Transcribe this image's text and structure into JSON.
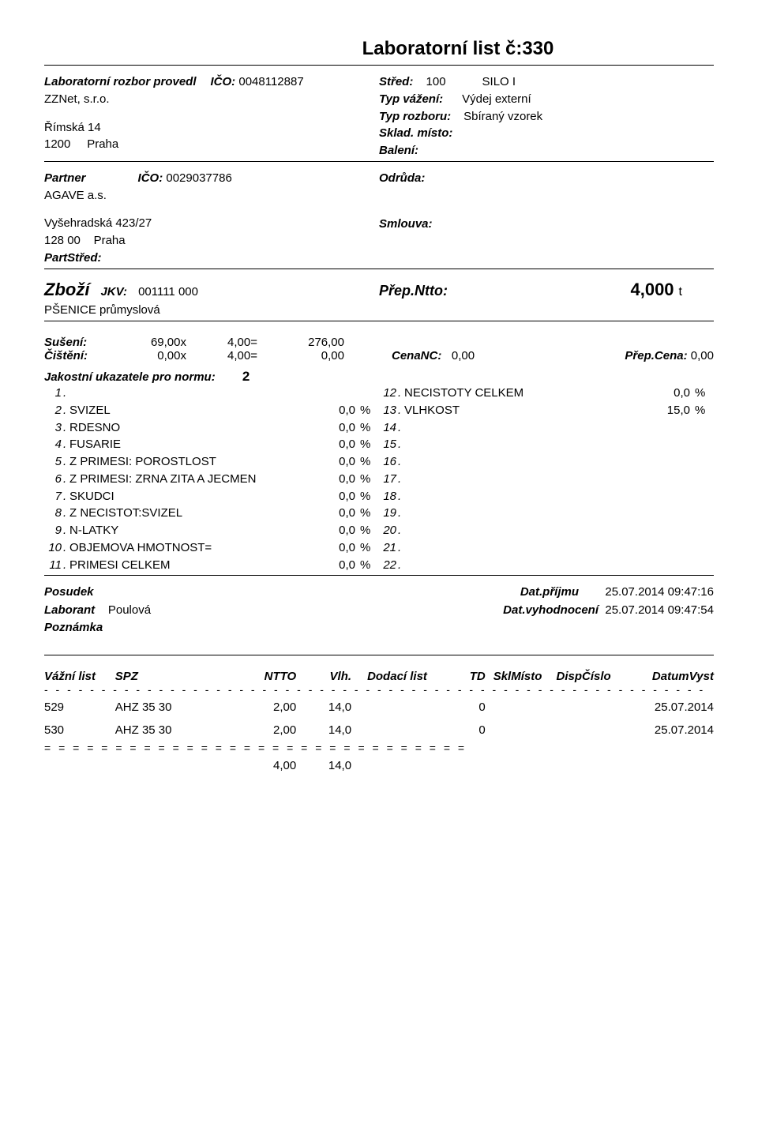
{
  "title": "Laboratorní list č:330",
  "lab": {
    "provedl_label": "Laboratorní rozbor provedl",
    "ico_label": "IČO:",
    "ico": "0048112887",
    "company": "ZZNet, s.r.o.",
    "street": "Římská 14",
    "zip": "1200",
    "city": "Praha"
  },
  "right": {
    "stred_label": "Střed:",
    "stred": "100",
    "silo": "SILO I",
    "typvaz_label": "Typ vážení:",
    "typvaz": "Výdej externí",
    "typroz_label": "Typ rozboru:",
    "typroz": "Sbíraný vzorek",
    "sklad_label": "Sklad. místo:",
    "baleni_label": "Balení:"
  },
  "partner": {
    "label": "Partner",
    "ico_label": "IČO:",
    "ico": "0029037786",
    "name": "AGAVE a.s.",
    "street": "Vyšehradská 423/27",
    "zip": "128 00",
    "city": "Praha",
    "partstred_label": "PartStřed:",
    "odruda_label": "Odrůda:",
    "smlouva_label": "Smlouva:"
  },
  "zbozi": {
    "label": "Zboží",
    "jkv_label": "JKV:",
    "jkv": "001111 000",
    "name": "PŠENICE průmyslová",
    "prep_label": "Přep.Ntto:",
    "prep_value": "4,000",
    "prep_unit": "t"
  },
  "calc": {
    "suseni_label": "Sušení:",
    "suseni_x": "69,00x",
    "suseni_eq": "4,00=",
    "suseni_res": "276,00",
    "cisteni_label": "Čištění:",
    "cisteni_x": "0,00x",
    "cisteni_eq": "4,00=",
    "cisteni_res": "0,00",
    "cenanc_label": "CenaNC:",
    "cenanc": "0,00",
    "prepcena_label": "Přep.Cena:",
    "prepcena": "0,00"
  },
  "norm": {
    "label": "Jakostní ukazatele pro normu:",
    "value": "2"
  },
  "quality_left": [
    {
      "n": "1",
      "name": "",
      "v": "",
      "u": ""
    },
    {
      "n": "2",
      "name": "SVIZEL",
      "v": "0,0",
      "u": "%"
    },
    {
      "n": "3",
      "name": "RDESNO",
      "v": "0,0",
      "u": "%"
    },
    {
      "n": "4",
      "name": "FUSARIE",
      "v": "0,0",
      "u": "%"
    },
    {
      "n": "5",
      "name": "Z PRIMESI: POROSTLOST",
      "v": "0,0",
      "u": "%"
    },
    {
      "n": "6",
      "name": "Z PRIMESI: ZRNA ZITA A JECMEN",
      "v": "0,0",
      "u": "%"
    },
    {
      "n": "7",
      "name": "SKUDCI",
      "v": "0,0",
      "u": "%"
    },
    {
      "n": "8",
      "name": "Z NECISTOT:SVIZEL",
      "v": "0,0",
      "u": "%"
    },
    {
      "n": "9",
      "name": "N-LATKY",
      "v": "0,0",
      "u": "%"
    },
    {
      "n": "10",
      "name": "OBJEMOVA HMOTNOST=",
      "v": "0,0",
      "u": "%"
    },
    {
      "n": "11",
      "name": "PRIMESI CELKEM",
      "v": "0,0",
      "u": "%"
    }
  ],
  "quality_right": [
    {
      "n": "12",
      "name": "NECISTOTY CELKEM",
      "v": "0,0",
      "u": "%"
    },
    {
      "n": "13",
      "name": "VLHKOST",
      "v": "15,0",
      "u": "%"
    },
    {
      "n": "14",
      "name": "",
      "v": "",
      "u": ""
    },
    {
      "n": "15",
      "name": "",
      "v": "",
      "u": ""
    },
    {
      "n": "16",
      "name": "",
      "v": "",
      "u": ""
    },
    {
      "n": "17",
      "name": "",
      "v": "",
      "u": ""
    },
    {
      "n": "18",
      "name": "",
      "v": "",
      "u": ""
    },
    {
      "n": "19",
      "name": "",
      "v": "",
      "u": ""
    },
    {
      "n": "20",
      "name": "",
      "v": "",
      "u": ""
    },
    {
      "n": "21",
      "name": "",
      "v": "",
      "u": ""
    },
    {
      "n": "22",
      "name": "",
      "v": "",
      "u": ""
    }
  ],
  "footer": {
    "posudek_label": "Posudek",
    "laborant_label": "Laborant",
    "laborant": "Poulová",
    "poznamka_label": "Poznámka",
    "datprijmu_label": "Dat.příjmu",
    "datprijmu": "25.07.2014 09:47:16",
    "datvyh_label": "Dat.vyhodnocení",
    "datvyh": "25.07.2014 09:47:54"
  },
  "table": {
    "headers": {
      "vazni": "Vážní list",
      "spz": "SPZ",
      "ntto": "NTTO",
      "vlh": "Vlh.",
      "dod": "Dodací list",
      "td": "TD",
      "skl": "SklMísto",
      "disp": "DispČíslo",
      "date": "DatumVyst"
    },
    "rows": [
      {
        "vazni": "529",
        "spz": "AHZ 35 30",
        "ntto": "2,00",
        "vlh": "14,0",
        "dod": "",
        "td": "0",
        "skl": "",
        "disp": "",
        "date": "25.07.2014"
      },
      {
        "vazni": "530",
        "spz": "AHZ 35 30",
        "ntto": "2,00",
        "vlh": "14,0",
        "dod": "",
        "td": "0",
        "skl": "",
        "disp": "",
        "date": "25.07.2014"
      }
    ],
    "sum": {
      "ntto": "4,00",
      "vlh": "14,0"
    }
  },
  "separators": {
    "dashes": "- - - - - - - - - - - - - - - - - - - - - - - - - - - - - - - - - - - - - - - - - - - - - - - - - - - - - - - - - -",
    "eqs": "= = = = = = = = = = = = = = = = = = = = = = = = = = = = = ="
  }
}
